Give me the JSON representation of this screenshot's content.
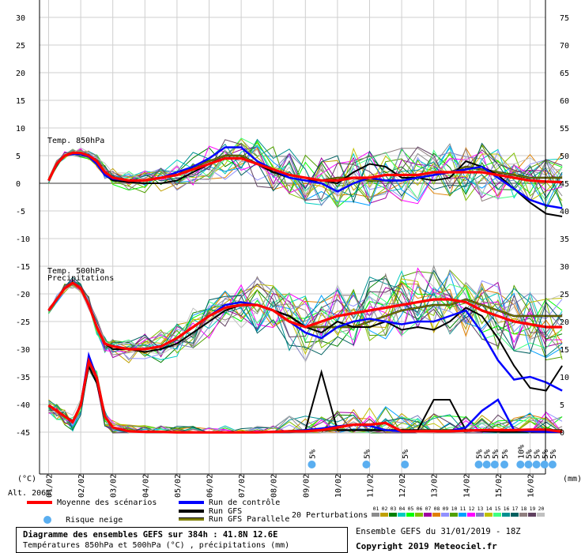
{
  "chart_data": {
    "type": "line",
    "title": "Diagramme des ensembles GEFS sur 384h : 41.8N 12.6E",
    "subtitle": "Températures 850hPa et 500hPa (°C) , précipitations (mm)",
    "ylabel_left": "(°C)",
    "ylabel_right": "(mm)",
    "altitude": "Alt. 206m",
    "yticks_left": [
      30,
      25,
      20,
      15,
      10,
      5,
      0,
      -5,
      -10,
      -15,
      -20,
      -25,
      -30,
      -35,
      -40,
      -45
    ],
    "yticks_right": [
      75,
      70,
      65,
      60,
      55,
      50,
      45,
      40,
      35,
      30,
      25,
      20,
      15,
      10,
      5,
      0
    ],
    "x_dates": [
      "01/02",
      "02/02",
      "03/02",
      "04/02",
      "05/02",
      "06/02",
      "07/02",
      "08/02",
      "09/02",
      "10/02",
      "11/02",
      "12/02",
      "13/02",
      "14/02",
      "15/02",
      "16/02"
    ],
    "panel_labels": [
      "Temp. 850hPa",
      "Temp. 500hPa",
      "Precipitations"
    ],
    "snow_risk": [
      {
        "day": 8.2,
        "label": "5%"
      },
      {
        "day": 9.9,
        "label": "5%"
      },
      {
        "day": 11.1,
        "label": "5%"
      },
      {
        "day": 13.4,
        "label": "5%"
      },
      {
        "day": 13.65,
        "label": "5%"
      },
      {
        "day": 13.9,
        "label": "5%"
      },
      {
        "day": 14.2,
        "label": "5%"
      },
      {
        "day": 14.7,
        "label": "10%"
      },
      {
        "day": 14.95,
        "label": "5%"
      },
      {
        "day": 15.2,
        "label": "5%"
      },
      {
        "day": 15.45,
        "label": "5%"
      },
      {
        "day": 15.7,
        "label": "5%"
      }
    ],
    "x_days": [
      0,
      0.25,
      0.5,
      0.75,
      1,
      1.25,
      1.5,
      1.75,
      2,
      2.5,
      3,
      3.5,
      4,
      4.5,
      5,
      5.5,
      6,
      6.5,
      7,
      7.5,
      8,
      8.5,
      9,
      9.5,
      10,
      10.5,
      11,
      11.5,
      12,
      12.5,
      13,
      13.5,
      14,
      14.5,
      15,
      15.5,
      16
    ],
    "series": [
      {
        "name": "Moyenne des scénarios",
        "color": "#ff0000",
        "t850": [
          0.5,
          3.5,
          5,
          5.5,
          5.5,
          5,
          4,
          2,
          1,
          0.5,
          0.5,
          1,
          1.5,
          2.5,
          3.5,
          4.5,
          4.5,
          3.5,
          2.5,
          1.5,
          1,
          0.5,
          0.5,
          1,
          1,
          1.5,
          1.5,
          1.5,
          2,
          2,
          2,
          2,
          1.5,
          1,
          0.5,
          0.3,
          0.2
        ],
        "t500": [
          -23,
          -21,
          -19,
          -18,
          -19,
          -22,
          -26,
          -29,
          -29.5,
          -30,
          -30,
          -29.5,
          -28,
          -26,
          -24,
          -22.5,
          -22,
          -22,
          -23,
          -25,
          -26,
          -25,
          -24,
          -23.5,
          -23,
          -22.5,
          -22,
          -21.5,
          -21,
          -21,
          -21.5,
          -23,
          -24,
          -25,
          -25.5,
          -26,
          -26
        ],
        "precip": [
          5,
          4,
          3,
          2,
          5,
          13,
          10,
          3,
          1,
          0.3,
          0.2,
          0.2,
          0.1,
          0.1,
          0.1,
          0.1,
          0.1,
          0.1,
          0.2,
          0.3,
          0.3,
          0.5,
          1,
          1.5,
          1.5,
          1.8,
          0.3,
          0.3,
          0.3,
          0.3,
          0.4,
          0.5,
          0.5,
          0.5,
          0.6,
          0.6,
          0.2
        ]
      },
      {
        "name": "Run de contrôle",
        "color": "#0000ff",
        "t850": [
          0.5,
          3.5,
          5,
          5.3,
          5.3,
          4.8,
          3.5,
          1.5,
          0.8,
          0.5,
          0.5,
          1,
          2,
          3,
          4.5,
          6.5,
          6.5,
          4,
          2.5,
          1,
          0.5,
          0,
          -1.5,
          0,
          1,
          0.5,
          0.5,
          1,
          1.5,
          2,
          2.5,
          3,
          1,
          -1,
          -3,
          -4,
          -4.5
        ],
        "t500": [
          -23,
          -21,
          -19,
          -18,
          -19,
          -22,
          -26,
          -29,
          -29.5,
          -30,
          -30,
          -29.5,
          -28,
          -26,
          -24,
          -22,
          -21.5,
          -22,
          -23,
          -25,
          -27,
          -28,
          -26,
          -25,
          -24.5,
          -25,
          -25.5,
          -25,
          -25,
          -24,
          -23,
          -27,
          -32,
          -35.5,
          -35,
          -36,
          -37.5
        ],
        "precip": [
          5,
          4,
          3,
          2,
          5,
          14,
          10,
          3,
          1,
          0.3,
          0.2,
          0.2,
          0.1,
          0.1,
          0.1,
          0.1,
          0.1,
          0.1,
          0.2,
          0.3,
          0.5,
          0.8,
          1.2,
          1.5,
          1.3,
          0.5,
          0.3,
          0.3,
          0.3,
          0.3,
          1,
          4,
          6,
          0.5,
          0.3,
          0.2,
          0.2
        ]
      },
      {
        "name": "Run GFS",
        "color": "#000000",
        "t850": [
          0.5,
          3.5,
          5,
          5.5,
          5.5,
          5,
          3.8,
          1.5,
          0.5,
          0.2,
          0,
          0,
          0.5,
          2,
          3.5,
          4.5,
          4.5,
          3.5,
          2,
          1,
          0.5,
          0.5,
          0,
          2,
          3.5,
          3,
          1,
          1,
          0.5,
          1,
          4,
          3,
          1.5,
          -1,
          -3.5,
          -5.5,
          -6
        ],
        "t500": [
          -23,
          -21,
          -19,
          -18,
          -19,
          -22,
          -26,
          -29,
          -30,
          -30,
          -30.5,
          -30,
          -29,
          -27,
          -25,
          -23,
          -22,
          -22,
          -23,
          -24,
          -26,
          -27,
          -25,
          -26,
          -26,
          -25,
          -26.5,
          -26,
          -26.5,
          -25,
          -22.5,
          -24,
          -28,
          -33,
          -37,
          -37.5,
          -33
        ],
        "precip": [
          5,
          4,
          3,
          2,
          5,
          12,
          9,
          3,
          1,
          0.3,
          0.2,
          0.2,
          0.1,
          0.1,
          0.1,
          0.1,
          0.1,
          0.1,
          0.2,
          0.3,
          0.5,
          11,
          0.5,
          0.5,
          0.5,
          0.5,
          0.5,
          0.5,
          6,
          6,
          0.5,
          0.3,
          0.2,
          0.2,
          0.2,
          0.2,
          0.2
        ]
      },
      {
        "name": "Run GFS Parallele",
        "color": "#808000",
        "t850": [
          0.5,
          3.5,
          5,
          5.5,
          5.5,
          5,
          4,
          1.8,
          0.8,
          0.5,
          0.5,
          1,
          1.5,
          3,
          4,
          5,
          5,
          3.5,
          2,
          1.5,
          1,
          0.5,
          1,
          1,
          0.5,
          0.5,
          0.5,
          1,
          1.5,
          2,
          3,
          2.5,
          2,
          1.5,
          1,
          1,
          1
        ],
        "t500": [
          -23,
          -21,
          -19,
          -18,
          -19,
          -22,
          -26,
          -29,
          -29.5,
          -30,
          -30,
          -29.5,
          -28,
          -26,
          -24,
          -22.5,
          -22,
          -22,
          -23,
          -24,
          -26,
          -26,
          -26,
          -26,
          -25,
          -24,
          -23,
          -22.5,
          -22,
          -22,
          -21,
          -22,
          -23,
          -24,
          -24,
          -24,
          -24
        ],
        "precip": [
          5,
          4,
          3,
          2,
          5,
          13,
          10,
          3,
          1,
          0.3,
          0.2,
          0.2,
          0.1,
          0.1,
          0.1,
          0.1,
          0.1,
          0.1,
          0.2,
          0.3,
          0.5,
          0.5,
          0.5,
          0.5,
          0.5,
          0.5,
          0.5,
          0.5,
          0.5,
          0.5,
          0.5,
          0.5,
          0.5,
          0.5,
          0.5,
          0.5,
          0.5
        ]
      }
    ],
    "perturbation_colors": [
      "#8c8c8c",
      "#c0a000",
      "#008000",
      "#00ccc0",
      "#00ff00",
      "#7fbf00",
      "#a000a0",
      "#e08000",
      "#9090ff",
      "#50a000",
      "#00a0ff",
      "#ff00ff",
      "#8080c0",
      "#c0c000",
      "#40ff80",
      "#009090",
      "#006060",
      "#908080",
      "#604060",
      "#c0c0c0"
    ]
  },
  "legend": {
    "mean": "Moyenne des scénarios",
    "control": "Run de contrôle",
    "gfs": "Run GFS",
    "gfs_par": "Run GFS Parallele",
    "snow": "Risque neige",
    "perturbations": "20 Perturbations",
    "pert_numbers": [
      "01",
      "02",
      "03",
      "04",
      "05",
      "06",
      "07",
      "08",
      "09",
      "10",
      "11",
      "12",
      "13",
      "14",
      "15",
      "16",
      "17",
      "18",
      "19",
      "20"
    ]
  },
  "footer": {
    "ensemble": "Ensemble GEFS du 31/01/2019 - 18Z",
    "copyright": "Copyright 2019 Meteociel.fr"
  }
}
